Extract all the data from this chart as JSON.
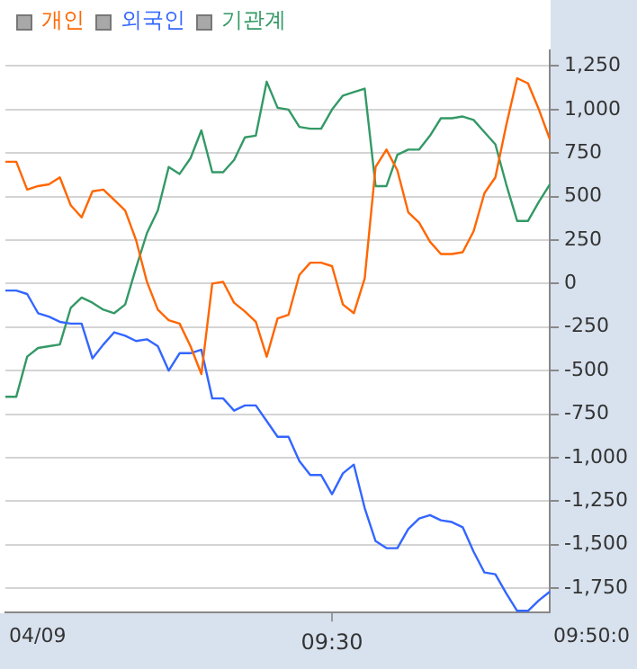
{
  "chart_data": {
    "type": "line",
    "legend": "top left",
    "grid": "y",
    "marker": "none",
    "line_style": "solid",
    "categories": [
      null,
      null,
      null,
      null,
      null,
      null,
      null,
      null,
      null,
      null,
      null,
      null,
      null,
      null,
      null,
      null,
      null,
      null,
      null,
      null,
      null,
      null,
      null,
      null,
      null,
      null,
      null,
      null,
      null,
      null,
      "09:30",
      null,
      null,
      null,
      null,
      null,
      null,
      null,
      null,
      null,
      null,
      null,
      null,
      null,
      null,
      null,
      null,
      null,
      null,
      null,
      null
    ],
    "ylim": [
      -1890,
      1340
    ],
    "yticks": [
      {
        "value": 1250,
        "label": "1,250"
      },
      {
        "value": 1000,
        "label": "1,000"
      },
      750,
      500,
      250,
      0,
      -250,
      -500,
      -750,
      {
        "value": -1000,
        "label": "-1,000"
      },
      {
        "value": -1250,
        "label": "-1,250"
      },
      {
        "value": -1500,
        "label": "-1,500"
      },
      {
        "value": -1750,
        "label": "-1,750"
      }
    ],
    "annotations": [
      "04/09",
      "09:50:0"
    ],
    "series": [
      {
        "name": "개인",
        "color": "#ff6600",
        "values": [
          700,
          700,
          540,
          560,
          570,
          610,
          450,
          380,
          530,
          540,
          480,
          420,
          250,
          10,
          -150,
          -210,
          -230,
          -360,
          -520,
          0,
          10,
          -110,
          -160,
          -220,
          -420,
          -200,
          -180,
          50,
          120,
          120,
          100,
          -120,
          -170,
          30,
          670,
          770,
          650,
          410,
          350,
          240,
          170,
          170,
          180,
          300,
          520,
          610,
          910,
          1180,
          1150,
          1000,
          830
        ]
      },
      {
        "name": "외국인",
        "color": "#3366ff",
        "values": [
          -40,
          -40,
          -60,
          -170,
          -190,
          -220,
          -230,
          -230,
          -430,
          -350,
          -280,
          -300,
          -330,
          -320,
          -360,
          -500,
          -400,
          -400,
          -380,
          -660,
          -660,
          -730,
          -700,
          -700,
          -790,
          -880,
          -880,
          -1020,
          -1100,
          -1100,
          -1210,
          -1090,
          -1040,
          -1290,
          -1480,
          -1520,
          -1520,
          -1410,
          -1350,
          -1330,
          -1360,
          -1370,
          -1400,
          -1540,
          -1660,
          -1670,
          -1780,
          -1880,
          -1880,
          -1820,
          -1770
        ]
      },
      {
        "name": "기관계",
        "color": "#339966",
        "values": [
          -650,
          -650,
          -420,
          -370,
          -360,
          -350,
          -140,
          -80,
          -110,
          -150,
          -170,
          -120,
          90,
          290,
          420,
          670,
          630,
          720,
          880,
          640,
          640,
          710,
          840,
          850,
          1160,
          1010,
          1000,
          900,
          890,
          890,
          1000,
          1080,
          1100,
          1120,
          560,
          560,
          740,
          770,
          770,
          850,
          950,
          950,
          960,
          940,
          870,
          800,
          570,
          360,
          360,
          470,
          570
        ]
      }
    ]
  }
}
